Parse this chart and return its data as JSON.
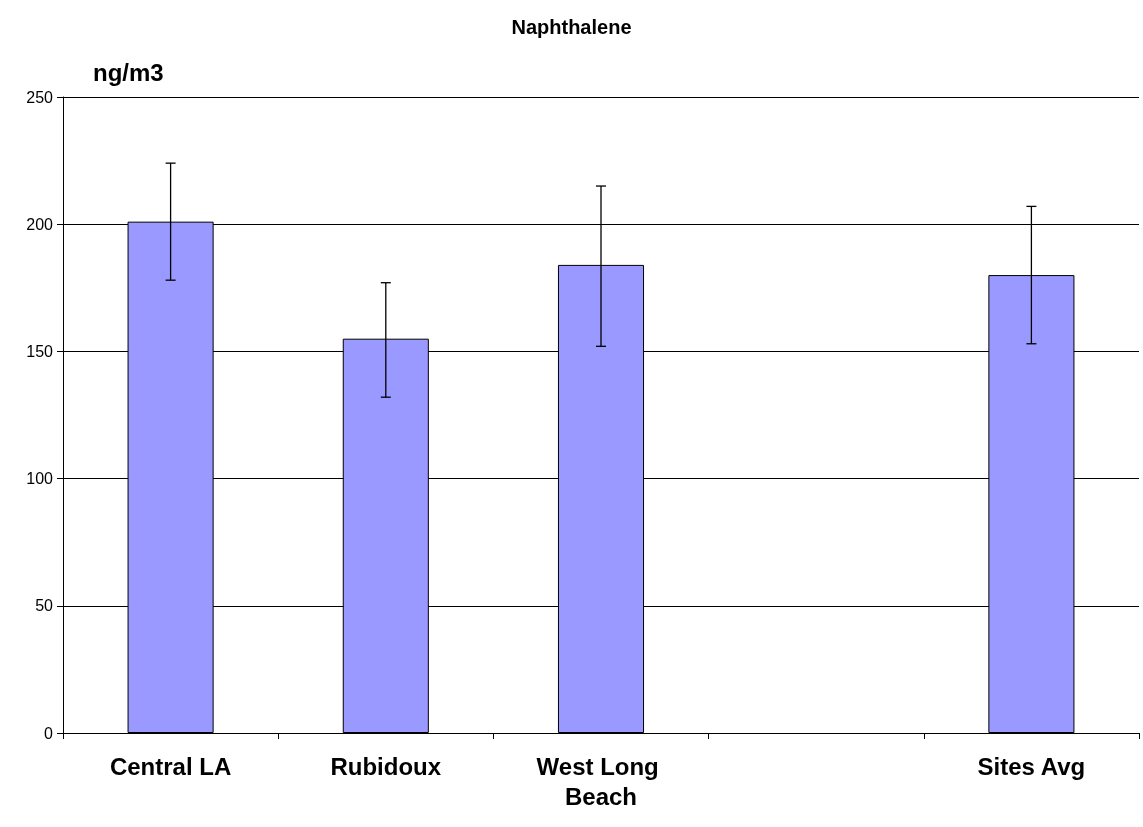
{
  "chart_data": {
    "type": "bar",
    "title": "Naphthalene",
    "ylabel": "ng/m3",
    "categories": [
      "Central LA",
      "Rubidoux",
      "West Long Beach",
      null,
      "Sites Avg"
    ],
    "values": [
      201,
      155,
      184,
      null,
      180
    ],
    "errors": [
      [
        178,
        224
      ],
      [
        132,
        177
      ],
      [
        152,
        215
      ],
      null,
      [
        153,
        207
      ]
    ],
    "color": "#9999ff",
    "ylim": [
      0,
      250
    ],
    "yticks": [
      0,
      50,
      100,
      150,
      200,
      250
    ],
    "grid": "y"
  }
}
